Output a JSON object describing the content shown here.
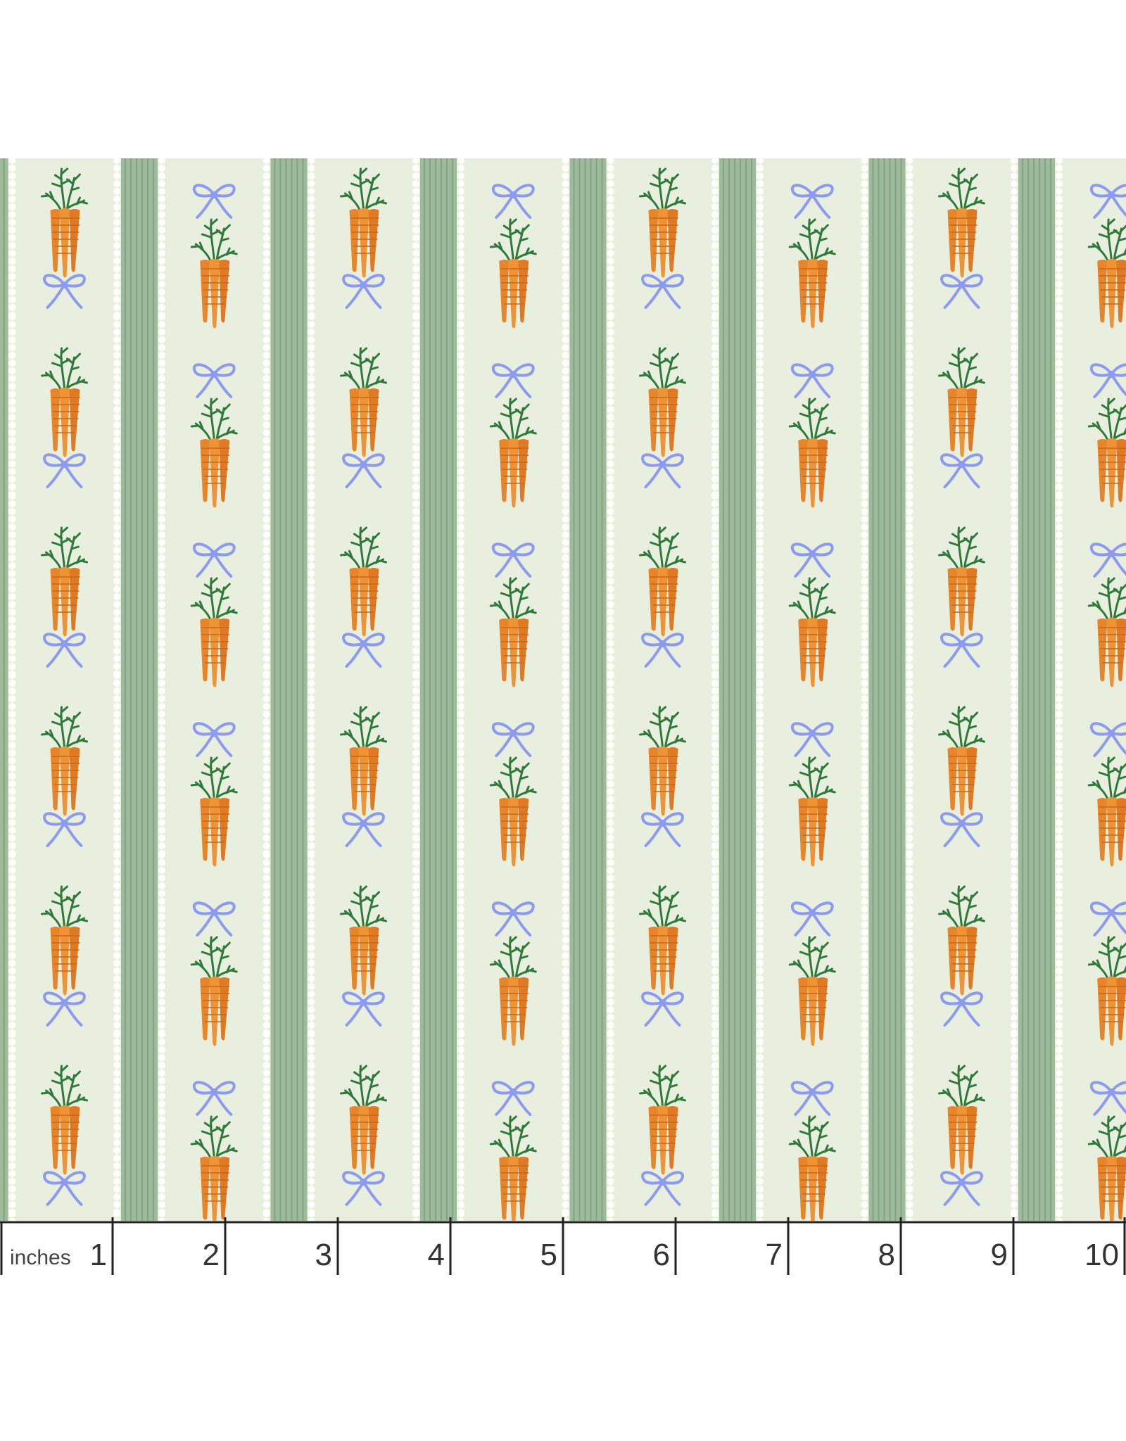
{
  "ruler": {
    "unit": "inches",
    "labels": [
      1,
      2,
      3,
      4,
      5,
      6,
      7,
      8,
      9,
      10
    ]
  }
}
